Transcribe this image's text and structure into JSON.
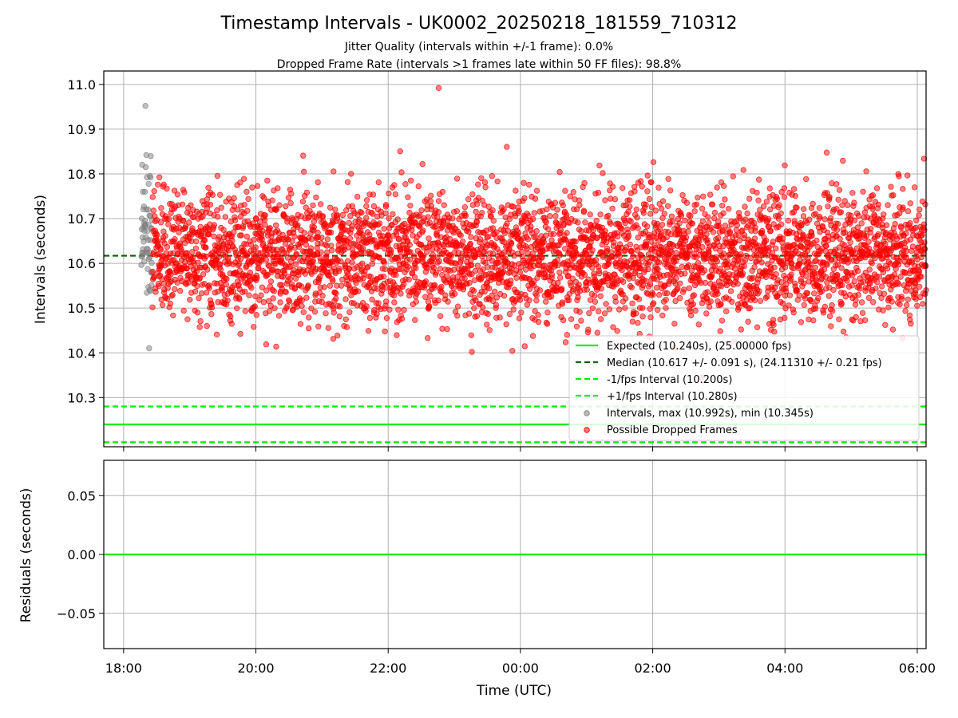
{
  "title": "Timestamp Intervals - UK0002_20250218_181559_710312",
  "subtitle_lines": [
    "Jitter Quality (intervals within +/-1 frame): 0.0%",
    "Dropped Frame Rate (intervals >1 frames late within 50 FF files): 98.8%"
  ],
  "colors": {
    "expected": "#00ee00",
    "median": "#006400",
    "bounds": "#00ee00",
    "intervals": "#808080",
    "dropped": "#ff0000",
    "grid": "#b0b0b0"
  },
  "chart_data": [
    {
      "type": "scatter",
      "ylabel": "Intervals (seconds)",
      "x_range": [
        "17:42",
        "06:08"
      ],
      "ylim": [
        10.19,
        11.03
      ],
      "x_ticks": [
        "18:00",
        "20:00",
        "22:00",
        "00:00",
        "02:00",
        "04:00",
        "06:00"
      ],
      "y_ticks": [
        "10.3",
        "10.4",
        "10.5",
        "10.6",
        "10.7",
        "10.8",
        "10.9",
        "11.0"
      ],
      "grid": true,
      "legend_placement": "lower-right",
      "legend": [
        "Expected (10.240s), (25.00000 fps)",
        "Median (10.617 +/- 0.091 s), (24.11310 +/- 0.21 fps)",
        "-1/fps Interval (10.200s)",
        "+1/fps Interval (10.280s)",
        "Intervals, max (10.992s), min (10.345s)",
        "Possible Dropped Frames"
      ],
      "reference_lines": {
        "expected": 10.24,
        "median": 10.617,
        "minus_1fps": 10.2,
        "plus_1fps": 10.28
      },
      "series": [
        {
          "name": "Intervals, max (10.992s), min (10.345s)",
          "time_range": [
            "18:16",
            "18:26"
          ],
          "count": 60,
          "y_center": 10.66,
          "y_spread": 0.09,
          "max": 10.952,
          "min": 10.41
        },
        {
          "name": "Possible Dropped Frames",
          "time_range": [
            "18:26",
            "06:08"
          ],
          "count": 4000,
          "y_center": 10.617,
          "y_spread": 0.091,
          "max": 10.992,
          "min": 10.345
        }
      ]
    },
    {
      "type": "line",
      "xlabel": "Time (UTC)",
      "ylabel": "Residuals (seconds)",
      "x_range": [
        "17:42",
        "06:08"
      ],
      "ylim": [
        -0.08,
        0.08
      ],
      "x_ticks": [
        "18:00",
        "20:00",
        "22:00",
        "00:00",
        "02:00",
        "04:00",
        "06:00"
      ],
      "y_ticks": [
        "0.05",
        "0.00",
        "−0.05"
      ],
      "grid": true,
      "residual_value": 0.0
    }
  ]
}
